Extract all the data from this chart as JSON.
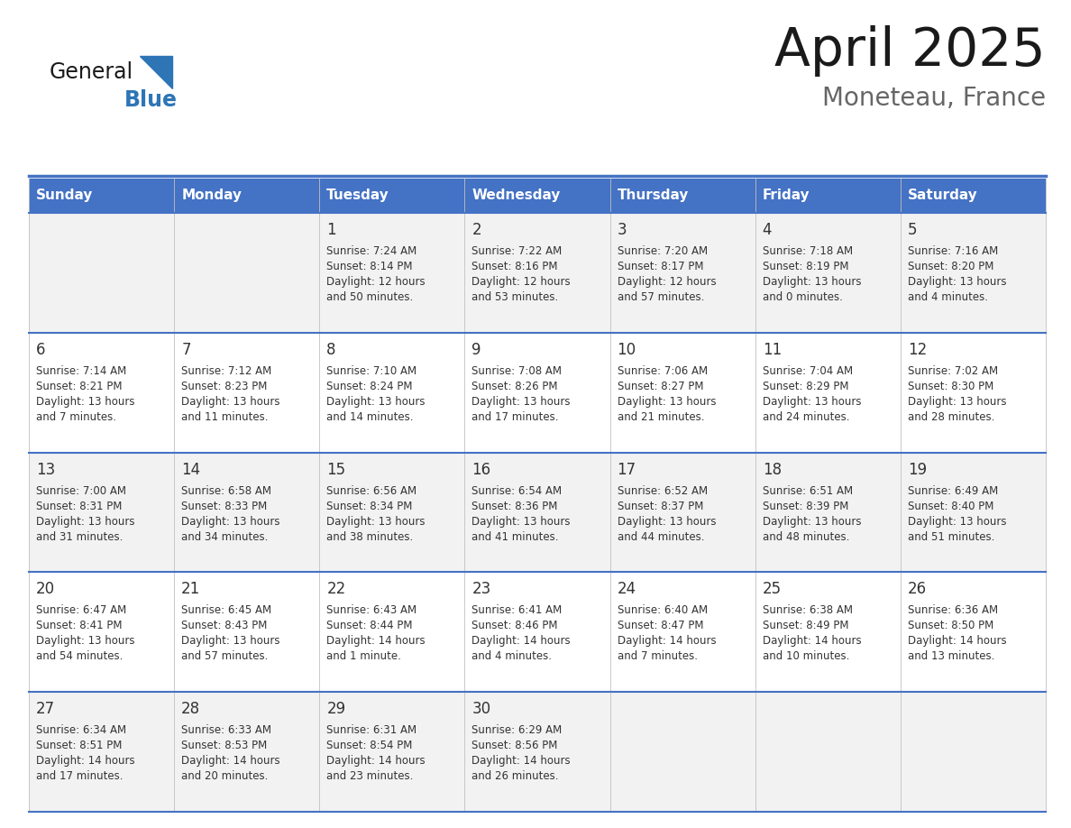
{
  "title": "April 2025",
  "subtitle": "Moneteau, France",
  "header_bg": "#4472C4",
  "header_text": "#FFFFFF",
  "header_days": [
    "Sunday",
    "Monday",
    "Tuesday",
    "Wednesday",
    "Thursday",
    "Friday",
    "Saturday"
  ],
  "row_bg_odd": "#F2F2F2",
  "row_bg_even": "#FFFFFF",
  "cell_text_color": "#333333",
  "day_num_color": "#333333",
  "border_color": "#4472C4",
  "logo_general_color": "#1a1a1a",
  "logo_blue_color": "#2E75B6",
  "weeks": [
    [
      {
        "day": "",
        "sunrise": "",
        "sunset": "",
        "daylight": ""
      },
      {
        "day": "",
        "sunrise": "",
        "sunset": "",
        "daylight": ""
      },
      {
        "day": "1",
        "sunrise": "Sunrise: 7:24 AM",
        "sunset": "Sunset: 8:14 PM",
        "daylight": "Daylight: 12 hours\nand 50 minutes."
      },
      {
        "day": "2",
        "sunrise": "Sunrise: 7:22 AM",
        "sunset": "Sunset: 8:16 PM",
        "daylight": "Daylight: 12 hours\nand 53 minutes."
      },
      {
        "day": "3",
        "sunrise": "Sunrise: 7:20 AM",
        "sunset": "Sunset: 8:17 PM",
        "daylight": "Daylight: 12 hours\nand 57 minutes."
      },
      {
        "day": "4",
        "sunrise": "Sunrise: 7:18 AM",
        "sunset": "Sunset: 8:19 PM",
        "daylight": "Daylight: 13 hours\nand 0 minutes."
      },
      {
        "day": "5",
        "sunrise": "Sunrise: 7:16 AM",
        "sunset": "Sunset: 8:20 PM",
        "daylight": "Daylight: 13 hours\nand 4 minutes."
      }
    ],
    [
      {
        "day": "6",
        "sunrise": "Sunrise: 7:14 AM",
        "sunset": "Sunset: 8:21 PM",
        "daylight": "Daylight: 13 hours\nand 7 minutes."
      },
      {
        "day": "7",
        "sunrise": "Sunrise: 7:12 AM",
        "sunset": "Sunset: 8:23 PM",
        "daylight": "Daylight: 13 hours\nand 11 minutes."
      },
      {
        "day": "8",
        "sunrise": "Sunrise: 7:10 AM",
        "sunset": "Sunset: 8:24 PM",
        "daylight": "Daylight: 13 hours\nand 14 minutes."
      },
      {
        "day": "9",
        "sunrise": "Sunrise: 7:08 AM",
        "sunset": "Sunset: 8:26 PM",
        "daylight": "Daylight: 13 hours\nand 17 minutes."
      },
      {
        "day": "10",
        "sunrise": "Sunrise: 7:06 AM",
        "sunset": "Sunset: 8:27 PM",
        "daylight": "Daylight: 13 hours\nand 21 minutes."
      },
      {
        "day": "11",
        "sunrise": "Sunrise: 7:04 AM",
        "sunset": "Sunset: 8:29 PM",
        "daylight": "Daylight: 13 hours\nand 24 minutes."
      },
      {
        "day": "12",
        "sunrise": "Sunrise: 7:02 AM",
        "sunset": "Sunset: 8:30 PM",
        "daylight": "Daylight: 13 hours\nand 28 minutes."
      }
    ],
    [
      {
        "day": "13",
        "sunrise": "Sunrise: 7:00 AM",
        "sunset": "Sunset: 8:31 PM",
        "daylight": "Daylight: 13 hours\nand 31 minutes."
      },
      {
        "day": "14",
        "sunrise": "Sunrise: 6:58 AM",
        "sunset": "Sunset: 8:33 PM",
        "daylight": "Daylight: 13 hours\nand 34 minutes."
      },
      {
        "day": "15",
        "sunrise": "Sunrise: 6:56 AM",
        "sunset": "Sunset: 8:34 PM",
        "daylight": "Daylight: 13 hours\nand 38 minutes."
      },
      {
        "day": "16",
        "sunrise": "Sunrise: 6:54 AM",
        "sunset": "Sunset: 8:36 PM",
        "daylight": "Daylight: 13 hours\nand 41 minutes."
      },
      {
        "day": "17",
        "sunrise": "Sunrise: 6:52 AM",
        "sunset": "Sunset: 8:37 PM",
        "daylight": "Daylight: 13 hours\nand 44 minutes."
      },
      {
        "day": "18",
        "sunrise": "Sunrise: 6:51 AM",
        "sunset": "Sunset: 8:39 PM",
        "daylight": "Daylight: 13 hours\nand 48 minutes."
      },
      {
        "day": "19",
        "sunrise": "Sunrise: 6:49 AM",
        "sunset": "Sunset: 8:40 PM",
        "daylight": "Daylight: 13 hours\nand 51 minutes."
      }
    ],
    [
      {
        "day": "20",
        "sunrise": "Sunrise: 6:47 AM",
        "sunset": "Sunset: 8:41 PM",
        "daylight": "Daylight: 13 hours\nand 54 minutes."
      },
      {
        "day": "21",
        "sunrise": "Sunrise: 6:45 AM",
        "sunset": "Sunset: 8:43 PM",
        "daylight": "Daylight: 13 hours\nand 57 minutes."
      },
      {
        "day": "22",
        "sunrise": "Sunrise: 6:43 AM",
        "sunset": "Sunset: 8:44 PM",
        "daylight": "Daylight: 14 hours\nand 1 minute."
      },
      {
        "day": "23",
        "sunrise": "Sunrise: 6:41 AM",
        "sunset": "Sunset: 8:46 PM",
        "daylight": "Daylight: 14 hours\nand 4 minutes."
      },
      {
        "day": "24",
        "sunrise": "Sunrise: 6:40 AM",
        "sunset": "Sunset: 8:47 PM",
        "daylight": "Daylight: 14 hours\nand 7 minutes."
      },
      {
        "day": "25",
        "sunrise": "Sunrise: 6:38 AM",
        "sunset": "Sunset: 8:49 PM",
        "daylight": "Daylight: 14 hours\nand 10 minutes."
      },
      {
        "day": "26",
        "sunrise": "Sunrise: 6:36 AM",
        "sunset": "Sunset: 8:50 PM",
        "daylight": "Daylight: 14 hours\nand 13 minutes."
      }
    ],
    [
      {
        "day": "27",
        "sunrise": "Sunrise: 6:34 AM",
        "sunset": "Sunset: 8:51 PM",
        "daylight": "Daylight: 14 hours\nand 17 minutes."
      },
      {
        "day": "28",
        "sunrise": "Sunrise: 6:33 AM",
        "sunset": "Sunset: 8:53 PM",
        "daylight": "Daylight: 14 hours\nand 20 minutes."
      },
      {
        "day": "29",
        "sunrise": "Sunrise: 6:31 AM",
        "sunset": "Sunset: 8:54 PM",
        "daylight": "Daylight: 14 hours\nand 23 minutes."
      },
      {
        "day": "30",
        "sunrise": "Sunrise: 6:29 AM",
        "sunset": "Sunset: 8:56 PM",
        "daylight": "Daylight: 14 hours\nand 26 minutes."
      },
      {
        "day": "",
        "sunrise": "",
        "sunset": "",
        "daylight": ""
      },
      {
        "day": "",
        "sunrise": "",
        "sunset": "",
        "daylight": ""
      },
      {
        "day": "",
        "sunrise": "",
        "sunset": "",
        "daylight": ""
      }
    ]
  ]
}
